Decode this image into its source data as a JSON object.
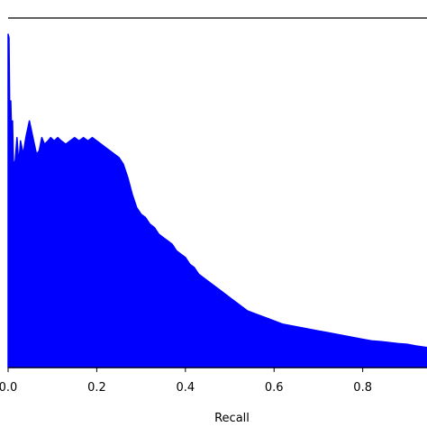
{
  "chart_data": {
    "type": "area",
    "title": "",
    "xlabel": "Recall",
    "ylabel": "",
    "xlim": [
      0.0,
      0.945
    ],
    "ylim": [
      0.0,
      1.0
    ],
    "grid": false,
    "legend": "none",
    "x_ticks": [
      0.0,
      0.2,
      0.4,
      0.6,
      0.8
    ],
    "x_tick_labels": [
      "0.0",
      "0.2",
      "0.4",
      "0.6",
      "0.8"
    ],
    "series": [
      {
        "color": "#0000ff",
        "x": [
          0.0,
          0.002,
          0.004,
          0.006,
          0.008,
          0.01,
          0.012,
          0.016,
          0.02,
          0.024,
          0.028,
          0.034,
          0.04,
          0.048,
          0.056,
          0.064,
          0.07,
          0.076,
          0.082,
          0.09,
          0.096,
          0.104,
          0.112,
          0.12,
          0.13,
          0.14,
          0.15,
          0.16,
          0.17,
          0.18,
          0.19,
          0.2,
          0.21,
          0.22,
          0.23,
          0.24,
          0.25,
          0.26,
          0.27,
          0.28,
          0.29,
          0.3,
          0.31,
          0.32,
          0.33,
          0.34,
          0.35,
          0.36,
          0.37,
          0.38,
          0.39,
          0.4,
          0.41,
          0.42,
          0.43,
          0.44,
          0.46,
          0.48,
          0.5,
          0.52,
          0.54,
          0.56,
          0.58,
          0.6,
          0.62,
          0.64,
          0.66,
          0.68,
          0.7,
          0.72,
          0.74,
          0.76,
          0.78,
          0.8,
          0.82,
          0.84,
          0.86,
          0.88,
          0.9,
          0.92,
          0.945
        ],
        "values": [
          1.0,
          0.99,
          0.72,
          0.8,
          0.7,
          0.74,
          0.61,
          0.62,
          0.69,
          0.61,
          0.68,
          0.64,
          0.69,
          0.74,
          0.69,
          0.64,
          0.65,
          0.69,
          0.67,
          0.68,
          0.69,
          0.68,
          0.69,
          0.68,
          0.67,
          0.68,
          0.69,
          0.68,
          0.69,
          0.68,
          0.69,
          0.68,
          0.67,
          0.66,
          0.65,
          0.64,
          0.63,
          0.61,
          0.57,
          0.52,
          0.48,
          0.46,
          0.45,
          0.43,
          0.42,
          0.4,
          0.39,
          0.38,
          0.37,
          0.35,
          0.34,
          0.33,
          0.31,
          0.3,
          0.28,
          0.27,
          0.25,
          0.23,
          0.21,
          0.19,
          0.17,
          0.16,
          0.15,
          0.14,
          0.13,
          0.125,
          0.12,
          0.115,
          0.11,
          0.105,
          0.1,
          0.095,
          0.09,
          0.085,
          0.08,
          0.078,
          0.075,
          0.072,
          0.07,
          0.065,
          0.06
        ]
      }
    ]
  }
}
